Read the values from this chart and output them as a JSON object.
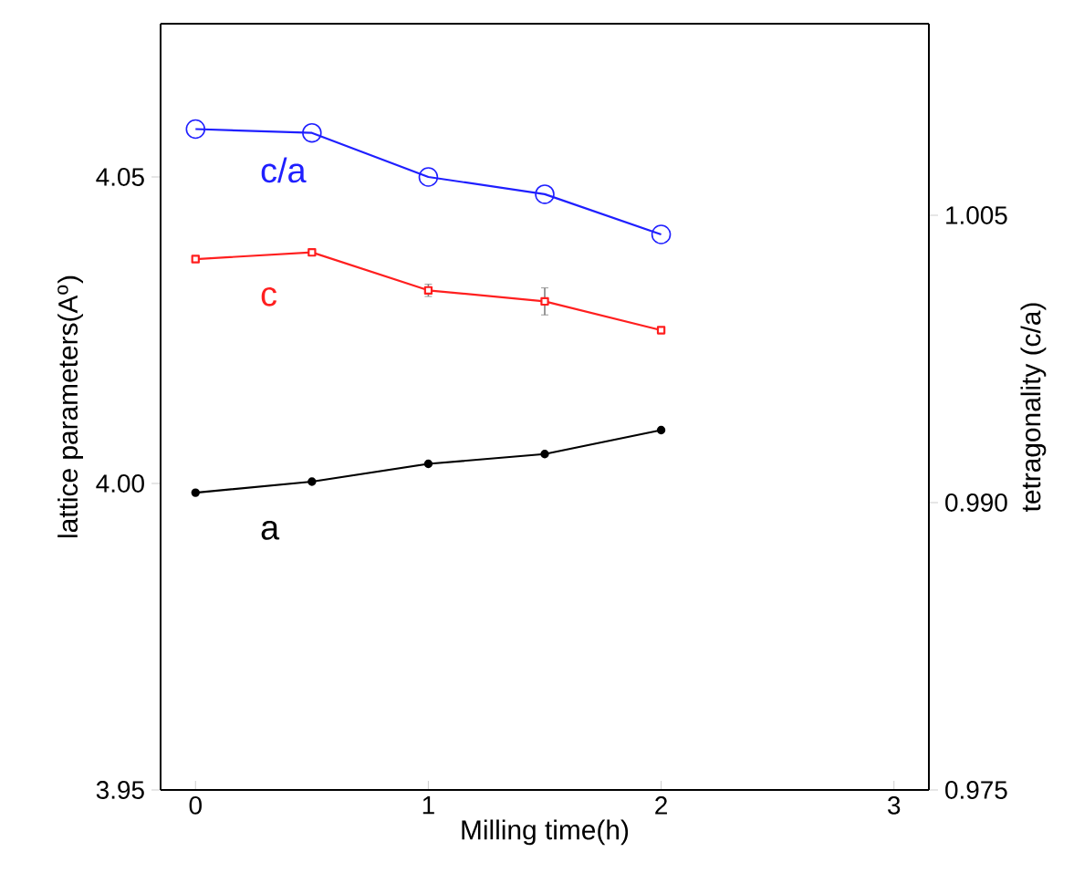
{
  "chart_data": {
    "type": "line",
    "xlabel": "Milling time(h)",
    "ylabel": "lattice parameters(A$^{o}$)",
    "y2label": "tetragonality (c/a)",
    "x": [
      0,
      0.5,
      1,
      1.5,
      2
    ],
    "series": [
      {
        "name": "c/a",
        "color": "#1f1fff",
        "marker": "circle",
        "axis": "y2",
        "values": [
          1.0095,
          1.0093,
          1.007,
          1.0061,
          1.004
        ]
      },
      {
        "name": "c",
        "color": "#ff1f1f",
        "marker": "square",
        "values": [
          4.0366,
          4.0377,
          4.0315,
          4.0297,
          4.025
        ],
        "errors": [
          null,
          null,
          0.001,
          0.0022,
          null
        ]
      },
      {
        "name": "a",
        "color": "#000000",
        "marker": "circle",
        "values": [
          3.9985,
          4.0003,
          4.0032,
          4.0048,
          4.0087
        ]
      }
    ],
    "xlim": [
      -0.15,
      3.15
    ],
    "xticks": [
      0,
      1,
      2,
      3
    ],
    "ylim": [
      3.95,
      4.075
    ],
    "yticks": [
      {
        "value": 3.95,
        "label": "3.95"
      },
      {
        "value": 4.0,
        "label": "4.00"
      },
      {
        "value": 4.05,
        "label": "4.05"
      }
    ],
    "y2lim": [
      0.975,
      1.015
    ],
    "y2ticks": [
      {
        "value": 0.975,
        "label": "0.975"
      },
      {
        "value": 0.99,
        "label": "0.990"
      },
      {
        "value": 1.005,
        "label": "1.005"
      }
    ],
    "grid": false,
    "line_style": "solid"
  }
}
